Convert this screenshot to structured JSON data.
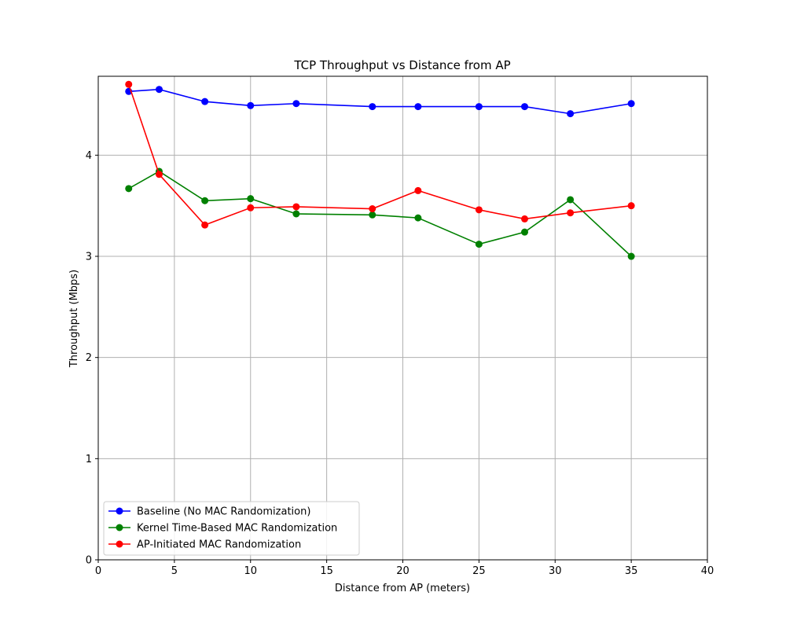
{
  "chart_data": {
    "type": "line",
    "title": "TCP Throughput vs Distance from AP",
    "xlabel": "Distance from AP (meters)",
    "ylabel": "Throughput (Mbps)",
    "xlim": [
      0,
      40
    ],
    "ylim": [
      0,
      4.78
    ],
    "xticks": [
      0,
      5,
      10,
      15,
      20,
      25,
      30,
      35,
      40
    ],
    "yticks": [
      0,
      1,
      2,
      3,
      4
    ],
    "grid": true,
    "legend_position": "lower-left",
    "x": [
      2,
      4,
      7,
      10,
      13,
      18,
      21,
      25,
      28,
      31,
      35
    ],
    "series": [
      {
        "name": "Baseline (No MAC Randomization)",
        "color": "#0000ff",
        "values": [
          4.63,
          4.65,
          4.53,
          4.49,
          4.51,
          4.48,
          4.48,
          4.48,
          4.48,
          4.41,
          4.51
        ]
      },
      {
        "name": "Kernel Time-Based MAC Randomization",
        "color": "#008000",
        "values": [
          3.67,
          3.84,
          3.55,
          3.57,
          3.42,
          3.41,
          3.38,
          3.12,
          3.24,
          3.56,
          3.0
        ]
      },
      {
        "name": "AP-Initiated MAC Randomization",
        "color": "#ff0000",
        "values": [
          4.7,
          3.81,
          3.31,
          3.48,
          3.49,
          3.47,
          3.65,
          3.46,
          3.37,
          3.43,
          3.5
        ]
      }
    ]
  }
}
